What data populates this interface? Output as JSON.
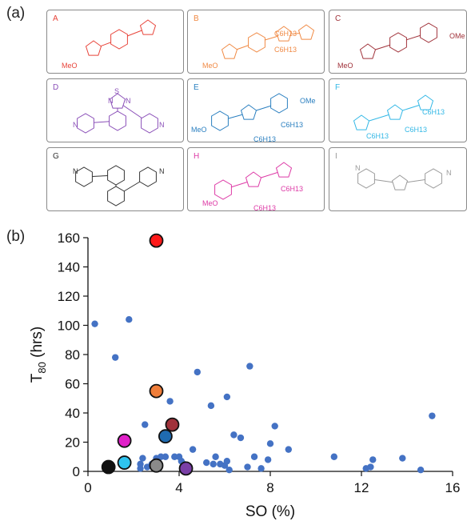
{
  "panel_a_label": "(a)",
  "panel_b_label": "(b)",
  "molecules": [
    {
      "letter": "A",
      "color": "#e8443a",
      "labels": [
        "MeO"
      ]
    },
    {
      "letter": "B",
      "color": "#f08a45",
      "labels": [
        "MeO",
        "C6H13",
        "C6H13"
      ]
    },
    {
      "letter": "C",
      "color": "#a0323a",
      "labels": [
        "MeO",
        "OMe"
      ]
    },
    {
      "letter": "D",
      "color": "#8a4fb8",
      "labels": [
        "N",
        "N",
        "S",
        "N",
        "N"
      ]
    },
    {
      "letter": "E",
      "color": "#2a7fc0",
      "labels": [
        "MeO",
        "OMe",
        "C6H13",
        "C6H13"
      ]
    },
    {
      "letter": "F",
      "color": "#33b8e6",
      "labels": [
        "C6H13",
        "C6H13",
        "C6H13"
      ]
    },
    {
      "letter": "G",
      "color": "#333333",
      "labels": [
        "N",
        "N"
      ]
    },
    {
      "letter": "H",
      "color": "#dd3aa6",
      "labels": [
        "MeO",
        "C6H13",
        "C6H13"
      ]
    },
    {
      "letter": "I",
      "color": "#9a9a9a",
      "labels": [
        "N",
        "N"
      ]
    }
  ],
  "chart_data": {
    "type": "scatter",
    "xlabel": "SO (%)",
    "ylabel_main": "T",
    "ylabel_sub": "80",
    "ylabel_unit": " (hrs)",
    "xlim": [
      0,
      16
    ],
    "ylim": [
      0,
      160
    ],
    "xticks": [
      0,
      4,
      8,
      12,
      16
    ],
    "yticks": [
      0,
      20,
      40,
      60,
      80,
      100,
      120,
      140,
      160
    ],
    "background_color": "#4472c4",
    "background_points": [
      [
        0.3,
        101
      ],
      [
        1.2,
        78
      ],
      [
        1.8,
        104
      ],
      [
        2.3,
        2
      ],
      [
        2.3,
        5
      ],
      [
        2.4,
        9
      ],
      [
        2.5,
        32
      ],
      [
        2.6,
        3
      ],
      [
        2.8,
        5
      ],
      [
        3.0,
        9
      ],
      [
        3.2,
        10
      ],
      [
        3.4,
        10
      ],
      [
        3.6,
        48
      ],
      [
        3.8,
        10
      ],
      [
        4.0,
        10
      ],
      [
        4.2,
        5
      ],
      [
        4.6,
        15
      ],
      [
        4.8,
        68
      ],
      [
        5.2,
        6
      ],
      [
        5.4,
        45
      ],
      [
        5.6,
        10
      ],
      [
        5.8,
        5
      ],
      [
        6.0,
        4
      ],
      [
        6.1,
        51
      ],
      [
        6.2,
        1
      ],
      [
        6.4,
        25
      ],
      [
        6.7,
        23
      ],
      [
        7.0,
        3
      ],
      [
        7.1,
        72
      ],
      [
        7.3,
        10
      ],
      [
        7.6,
        2
      ],
      [
        7.9,
        8
      ],
      [
        8.0,
        19
      ],
      [
        8.2,
        31
      ],
      [
        8.8,
        15
      ],
      [
        10.8,
        10
      ],
      [
        12.2,
        2
      ],
      [
        12.4,
        3
      ],
      [
        12.5,
        8
      ],
      [
        13.8,
        9
      ],
      [
        14.6,
        1
      ],
      [
        15.1,
        38
      ],
      [
        5.5,
        5
      ],
      [
        3.1,
        2
      ],
      [
        6.1,
        7
      ],
      [
        4.1,
        7
      ]
    ],
    "highlighted_points": [
      {
        "label": "A",
        "x": 3.0,
        "y": 158,
        "color": "#ff1a1a"
      },
      {
        "label": "B",
        "x": 3.0,
        "y": 55,
        "color": "#f07e3a"
      },
      {
        "label": "C",
        "x": 3.7,
        "y": 32,
        "color": "#a0323a"
      },
      {
        "label": "E",
        "x": 3.4,
        "y": 24,
        "color": "#1f6bb0"
      },
      {
        "label": "H",
        "x": 1.6,
        "y": 21,
        "color": "#e020c8"
      },
      {
        "label": "F",
        "x": 1.6,
        "y": 6,
        "color": "#2ec4f0"
      },
      {
        "label": "G",
        "x": 0.9,
        "y": 3,
        "color": "#111111"
      },
      {
        "label": "I",
        "x": 3.0,
        "y": 4,
        "color": "#8a8a8a"
      },
      {
        "label": "D",
        "x": 4.3,
        "y": 2,
        "color": "#7a3fa6"
      }
    ]
  }
}
